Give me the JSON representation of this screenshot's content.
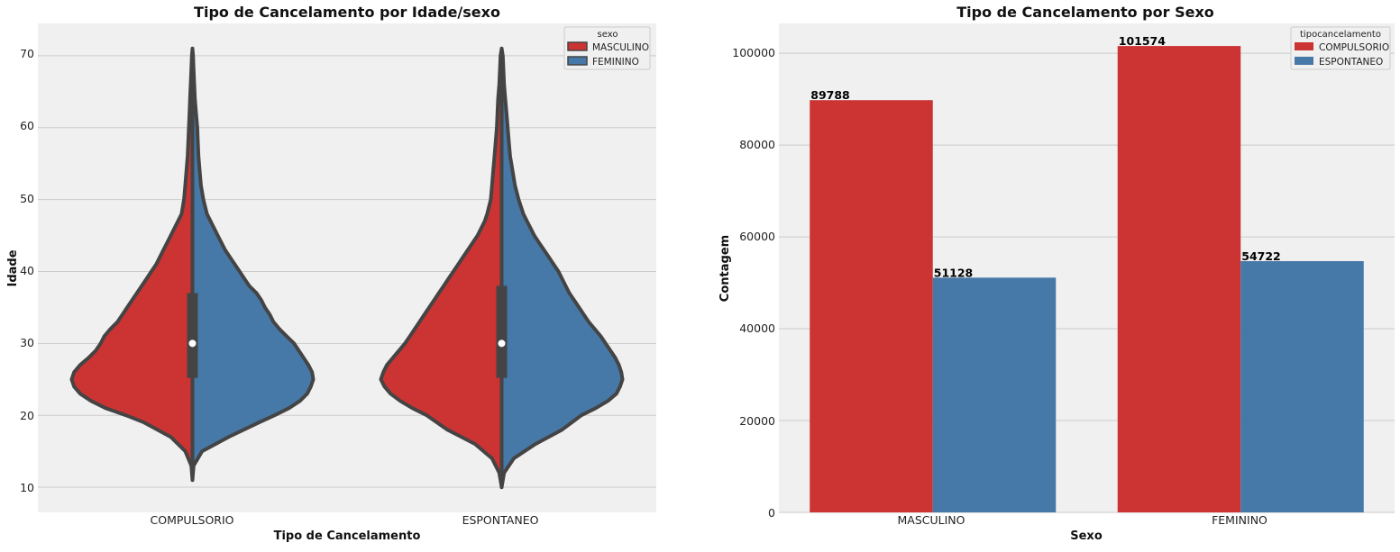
{
  "colors": {
    "background": "#ffffff",
    "panel": "#f0f0f0",
    "grid": "#cbcbcb",
    "red": "#cc3333",
    "blue": "#4679a8",
    "outline": "#444444"
  },
  "chart_data": [
    {
      "type": "violin",
      "title": "Tipo de Cancelamento por Idade/sexo",
      "xlabel": "Tipo de Cancelamento",
      "ylabel": "Idade",
      "ylim": [
        6.5,
        74.5
      ],
      "yticks": [
        "10",
        "20",
        "30",
        "40",
        "50",
        "60",
        "70"
      ],
      "categories": [
        "COMPULSORIO",
        "ESPONTANEO"
      ],
      "legend": {
        "title": "sexo",
        "position": "top-right",
        "entries": [
          "MASCULINO",
          "FEMININO"
        ]
      },
      "split": true,
      "grid": true,
      "violins": [
        {
          "category": "COMPULSORIO",
          "median": 30,
          "q1": 25.2,
          "q3": 37,
          "MASCULINO": [
            [
              11,
              0.0
            ],
            [
              13,
              0.01
            ],
            [
              15,
              0.06
            ],
            [
              17,
              0.18
            ],
            [
              19,
              0.4
            ],
            [
              20,
              0.55
            ],
            [
              21,
              0.72
            ],
            [
              22,
              0.84
            ],
            [
              23,
              0.93
            ],
            [
              24,
              0.98
            ],
            [
              25,
              1.0
            ],
            [
              26,
              0.98
            ],
            [
              27,
              0.93
            ],
            [
              28,
              0.86
            ],
            [
              29,
              0.8
            ],
            [
              30,
              0.76
            ],
            [
              31,
              0.73
            ],
            [
              32,
              0.68
            ],
            [
              33,
              0.62
            ],
            [
              34,
              0.58
            ],
            [
              35,
              0.54
            ],
            [
              36,
              0.5
            ],
            [
              37,
              0.46
            ],
            [
              38,
              0.42
            ],
            [
              39,
              0.38
            ],
            [
              40,
              0.34
            ],
            [
              41,
              0.3
            ],
            [
              42,
              0.27
            ],
            [
              43,
              0.24
            ],
            [
              44,
              0.21
            ],
            [
              45,
              0.18
            ],
            [
              46,
              0.15
            ],
            [
              47,
              0.12
            ],
            [
              48,
              0.09
            ],
            [
              50,
              0.07
            ],
            [
              52,
              0.06
            ],
            [
              54,
              0.05
            ],
            [
              56,
              0.04
            ],
            [
              58,
              0.035
            ],
            [
              60,
              0.03
            ],
            [
              62,
              0.025
            ],
            [
              64,
              0.02
            ],
            [
              66,
              0.015
            ],
            [
              68,
              0.01
            ],
            [
              70,
              0.005
            ],
            [
              71,
              0.0
            ]
          ],
          "FEMININO": [
            [
              11,
              0.0
            ],
            [
              13,
              0.01
            ],
            [
              15,
              0.08
            ],
            [
              17,
              0.3
            ],
            [
              19,
              0.55
            ],
            [
              20,
              0.68
            ],
            [
              21,
              0.8
            ],
            [
              22,
              0.89
            ],
            [
              23,
              0.95
            ],
            [
              24,
              0.98
            ],
            [
              25,
              1.0
            ],
            [
              26,
              0.99
            ],
            [
              27,
              0.96
            ],
            [
              28,
              0.92
            ],
            [
              29,
              0.88
            ],
            [
              30,
              0.84
            ],
            [
              31,
              0.78
            ],
            [
              32,
              0.72
            ],
            [
              33,
              0.67
            ],
            [
              34,
              0.64
            ],
            [
              35,
              0.6
            ],
            [
              36,
              0.57
            ],
            [
              37,
              0.53
            ],
            [
              38,
              0.47
            ],
            [
              39,
              0.43
            ],
            [
              40,
              0.39
            ],
            [
              41,
              0.35
            ],
            [
              42,
              0.31
            ],
            [
              43,
              0.27
            ],
            [
              44,
              0.24
            ],
            [
              45,
              0.21
            ],
            [
              46,
              0.18
            ],
            [
              47,
              0.15
            ],
            [
              48,
              0.12
            ],
            [
              50,
              0.09
            ],
            [
              52,
              0.07
            ],
            [
              54,
              0.06
            ],
            [
              56,
              0.05
            ],
            [
              58,
              0.045
            ],
            [
              60,
              0.04
            ],
            [
              62,
              0.03
            ],
            [
              64,
              0.02
            ],
            [
              66,
              0.015
            ],
            [
              68,
              0.01
            ],
            [
              70,
              0.005
            ],
            [
              71,
              0.0
            ]
          ]
        },
        {
          "category": "ESPONTANEO",
          "median": 30,
          "q1": 25.2,
          "q3": 38,
          "MASCULINO": [
            [
              10,
              0.0
            ],
            [
              12,
              0.02
            ],
            [
              14,
              0.08
            ],
            [
              16,
              0.22
            ],
            [
              18,
              0.45
            ],
            [
              20,
              0.62
            ],
            [
              21,
              0.74
            ],
            [
              22,
              0.84
            ],
            [
              23,
              0.92
            ],
            [
              24,
              0.97
            ],
            [
              25,
              1.0
            ],
            [
              26,
              0.98
            ],
            [
              27,
              0.95
            ],
            [
              28,
              0.9
            ],
            [
              29,
              0.85
            ],
            [
              30,
              0.8
            ],
            [
              31,
              0.76
            ],
            [
              32,
              0.72
            ],
            [
              33,
              0.68
            ],
            [
              34,
              0.64
            ],
            [
              35,
              0.6
            ],
            [
              36,
              0.56
            ],
            [
              37,
              0.52
            ],
            [
              38,
              0.48
            ],
            [
              39,
              0.44
            ],
            [
              40,
              0.4
            ],
            [
              41,
              0.36
            ],
            [
              42,
              0.32
            ],
            [
              43,
              0.28
            ],
            [
              44,
              0.24
            ],
            [
              45,
              0.2
            ],
            [
              46,
              0.17
            ],
            [
              47,
              0.14
            ],
            [
              48,
              0.12
            ],
            [
              50,
              0.09
            ],
            [
              52,
              0.08
            ],
            [
              54,
              0.07
            ],
            [
              56,
              0.06
            ],
            [
              58,
              0.05
            ],
            [
              60,
              0.04
            ],
            [
              62,
              0.035
            ],
            [
              64,
              0.03
            ],
            [
              66,
              0.02
            ],
            [
              68,
              0.015
            ],
            [
              70,
              0.01
            ],
            [
              71,
              0.0
            ]
          ],
          "FEMININO": [
            [
              10,
              0.0
            ],
            [
              12,
              0.02
            ],
            [
              14,
              0.1
            ],
            [
              16,
              0.28
            ],
            [
              18,
              0.5
            ],
            [
              20,
              0.66
            ],
            [
              21,
              0.78
            ],
            [
              22,
              0.88
            ],
            [
              23,
              0.95
            ],
            [
              24,
              0.98
            ],
            [
              25,
              1.0
            ],
            [
              26,
              0.99
            ],
            [
              27,
              0.97
            ],
            [
              28,
              0.94
            ],
            [
              29,
              0.9
            ],
            [
              30,
              0.86
            ],
            [
              31,
              0.82
            ],
            [
              32,
              0.77
            ],
            [
              33,
              0.72
            ],
            [
              34,
              0.68
            ],
            [
              35,
              0.64
            ],
            [
              36,
              0.6
            ],
            [
              37,
              0.56
            ],
            [
              38,
              0.53
            ],
            [
              39,
              0.5
            ],
            [
              40,
              0.47
            ],
            [
              41,
              0.43
            ],
            [
              42,
              0.39
            ],
            [
              43,
              0.35
            ],
            [
              44,
              0.31
            ],
            [
              45,
              0.27
            ],
            [
              46,
              0.24
            ],
            [
              47,
              0.21
            ],
            [
              48,
              0.18
            ],
            [
              50,
              0.14
            ],
            [
              52,
              0.11
            ],
            [
              54,
              0.09
            ],
            [
              56,
              0.07
            ],
            [
              58,
              0.06
            ],
            [
              60,
              0.05
            ],
            [
              62,
              0.04
            ],
            [
              64,
              0.03
            ],
            [
              66,
              0.02
            ],
            [
              68,
              0.015
            ],
            [
              70,
              0.01
            ],
            [
              71,
              0.0
            ]
          ]
        }
      ]
    },
    {
      "type": "bar",
      "title": "Tipo de Cancelamento por Sexo",
      "xlabel": "Sexo",
      "ylabel": "Contagem",
      "ylim": [
        0,
        106500
      ],
      "yticks": [
        "0",
        "20000",
        "40000",
        "60000",
        "80000",
        "100000"
      ],
      "categories": [
        "MASCULINO",
        "FEMININO"
      ],
      "legend": {
        "title": "tipocancelamento",
        "position": "top-right",
        "entries": [
          "COMPULSORIO",
          "ESPONTANEO"
        ]
      },
      "grid": true,
      "series": [
        {
          "name": "COMPULSORIO",
          "values": [
            89788,
            101574
          ],
          "labels": [
            "89788",
            "101574"
          ]
        },
        {
          "name": "ESPONTANEO",
          "values": [
            51128,
            54722
          ],
          "labels": [
            "51128",
            "54722"
          ]
        }
      ]
    }
  ]
}
